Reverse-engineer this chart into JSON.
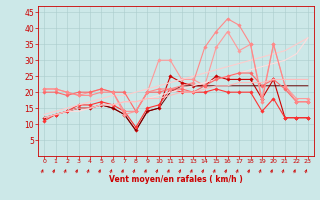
{
  "x": [
    0,
    1,
    2,
    3,
    4,
    5,
    6,
    7,
    8,
    9,
    10,
    11,
    12,
    13,
    14,
    15,
    16,
    17,
    18,
    19,
    20,
    21,
    22,
    23
  ],
  "series": [
    {
      "y": [
        12,
        13,
        14,
        15,
        15,
        16,
        15,
        13,
        8,
        14,
        15,
        25,
        23,
        22,
        22,
        25,
        24,
        24,
        24,
        18,
        24,
        12,
        12,
        12
      ],
      "color": "#cc0000",
      "lw": 0.8,
      "marker": "D",
      "ms": 1.8
    },
    {
      "y": [
        12,
        13,
        14,
        15,
        15,
        16,
        15,
        13,
        8,
        14,
        15,
        20,
        22,
        22,
        22,
        22,
        22,
        22,
        22,
        22,
        22,
        22,
        22,
        22
      ],
      "color": "#660000",
      "lw": 0.7,
      "marker": null,
      "ms": 0
    },
    {
      "y": [
        11,
        13,
        14,
        16,
        16,
        17,
        16,
        14,
        9,
        15,
        16,
        21,
        20,
        20,
        20,
        21,
        20,
        20,
        20,
        14,
        18,
        12,
        12,
        12
      ],
      "color": "#ff3333",
      "lw": 0.8,
      "marker": "D",
      "ms": 1.8
    },
    {
      "y": [
        21,
        21,
        20,
        19,
        20,
        21,
        20,
        13,
        14,
        20,
        30,
        30,
        24,
        24,
        22,
        34,
        39,
        33,
        35,
        18,
        35,
        22,
        18,
        18
      ],
      "color": "#ff9999",
      "lw": 0.8,
      "marker": "D",
      "ms": 1.8
    },
    {
      "y": [
        13,
        14,
        15,
        16,
        17,
        18,
        19,
        19,
        20,
        21,
        22,
        23,
        24,
        25,
        26,
        27,
        28,
        29,
        30,
        31,
        32,
        33,
        35,
        37
      ],
      "color": "#ffcccc",
      "lw": 0.8,
      "marker": null,
      "ms": 0
    },
    {
      "y": [
        12,
        13,
        14,
        14,
        15,
        16,
        16,
        17,
        17,
        18,
        19,
        20,
        21,
        22,
        23,
        24,
        25,
        26,
        27,
        28,
        29,
        30,
        32,
        37
      ],
      "color": "#ffdddd",
      "lw": 0.8,
      "marker": null,
      "ms": 0
    },
    {
      "y": [
        20,
        20,
        19,
        20,
        20,
        21,
        20,
        20,
        14,
        20,
        20,
        21,
        21,
        20,
        22,
        24,
        25,
        26,
        26,
        22,
        24,
        21,
        17,
        17
      ],
      "color": "#ff6666",
      "lw": 0.8,
      "marker": "D",
      "ms": 1.8
    },
    {
      "y": [
        21,
        21,
        20,
        19,
        19,
        20,
        20,
        14,
        14,
        20,
        21,
        21,
        22,
        23,
        34,
        39,
        43,
        41,
        35,
        17,
        35,
        22,
        17,
        17
      ],
      "color": "#ff8888",
      "lw": 0.8,
      "marker": "D",
      "ms": 1.8
    },
    {
      "y": [
        12,
        13,
        14,
        15,
        15,
        16,
        16,
        17,
        17,
        18,
        18,
        19,
        20,
        20,
        21,
        22,
        22,
        23,
        23,
        23,
        24,
        24,
        24,
        24
      ],
      "color": "#ffbbbb",
      "lw": 0.8,
      "marker": null,
      "ms": 0
    }
  ],
  "xlabel": "Vent moyen/en rafales ( km/h )",
  "xlim": [
    -0.5,
    23.5
  ],
  "ylim": [
    0,
    47
  ],
  "yticks": [
    5,
    10,
    15,
    20,
    25,
    30,
    35,
    40,
    45
  ],
  "xticks": [
    0,
    1,
    2,
    3,
    4,
    5,
    6,
    7,
    8,
    9,
    10,
    11,
    12,
    13,
    14,
    15,
    16,
    17,
    18,
    19,
    20,
    21,
    22,
    23
  ],
  "bg_color": "#cce8e8",
  "grid_color": "#aacccc",
  "axis_color": "#cc0000",
  "tick_color": "#cc0000",
  "label_color": "#cc0000"
}
